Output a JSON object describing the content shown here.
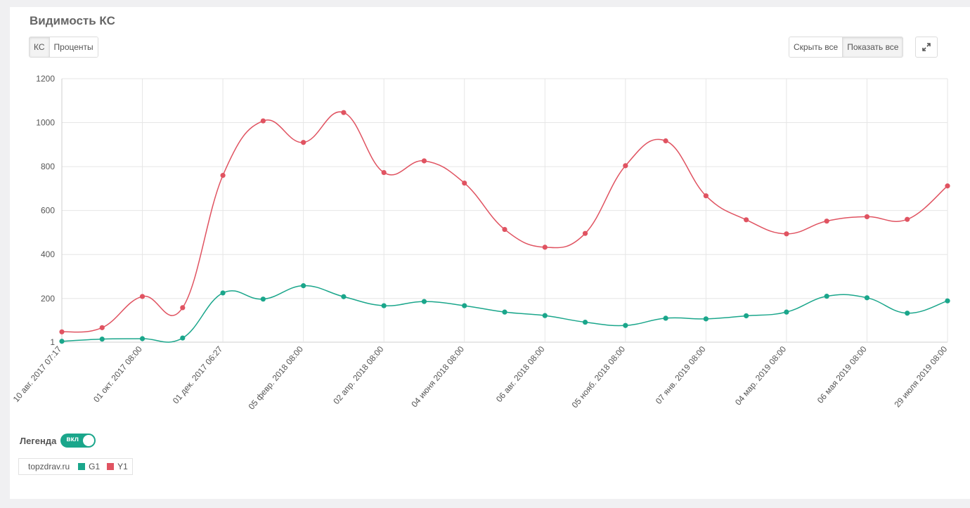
{
  "title": "Видимость КС",
  "units_toggle": {
    "ks": "КС",
    "percent": "Проценты"
  },
  "visibility": {
    "hide_all": "Скрыть все",
    "show_all": "Показать все"
  },
  "expand_icon": "expand-icon",
  "legend": {
    "label": "Легенда",
    "toggle_text": "вкл",
    "site": "topzdrav.ru"
  },
  "colors": {
    "g1": "#1aa68b",
    "y1": "#e05361",
    "toggle": "#1aa68b"
  },
  "chart_data": {
    "type": "line",
    "x": [
      "10 авг. 2017 07:17",
      "",
      "01 окт. 2017 08:00",
      "",
      "01 дек. 2017 06:27",
      "",
      "05 февр. 2018 08:00",
      "",
      "02 апр. 2018 08:00",
      "",
      "04 июня 2018 08:00",
      "",
      "06 авг. 2018 08:00",
      "",
      "05 нояб. 2018 08:00",
      "",
      "07 янв. 2019 08:00",
      "",
      "04 мар. 2019 08:00",
      "",
      "06 мая 2019 08:00",
      "",
      "29 июля 2019 08:00"
    ],
    "yticks": [
      1,
      200,
      400,
      600,
      800,
      1000,
      1200
    ],
    "ylim": [
      1,
      1200
    ],
    "grid": true,
    "series": [
      {
        "name": "G1",
        "values": [
          5,
          15,
          17,
          20,
          225,
          197,
          258,
          208,
          167,
          186,
          167,
          138,
          122,
          92,
          77,
          110,
          107,
          121,
          138,
          210,
          203,
          133,
          189
        ]
      },
      {
        "name": "Y1",
        "values": [
          48,
          67,
          209,
          158,
          760,
          1008,
          910,
          1046,
          773,
          826,
          725,
          514,
          433,
          496,
          804,
          917,
          667,
          558,
          494,
          552,
          572,
          560,
          712
        ]
      }
    ]
  }
}
